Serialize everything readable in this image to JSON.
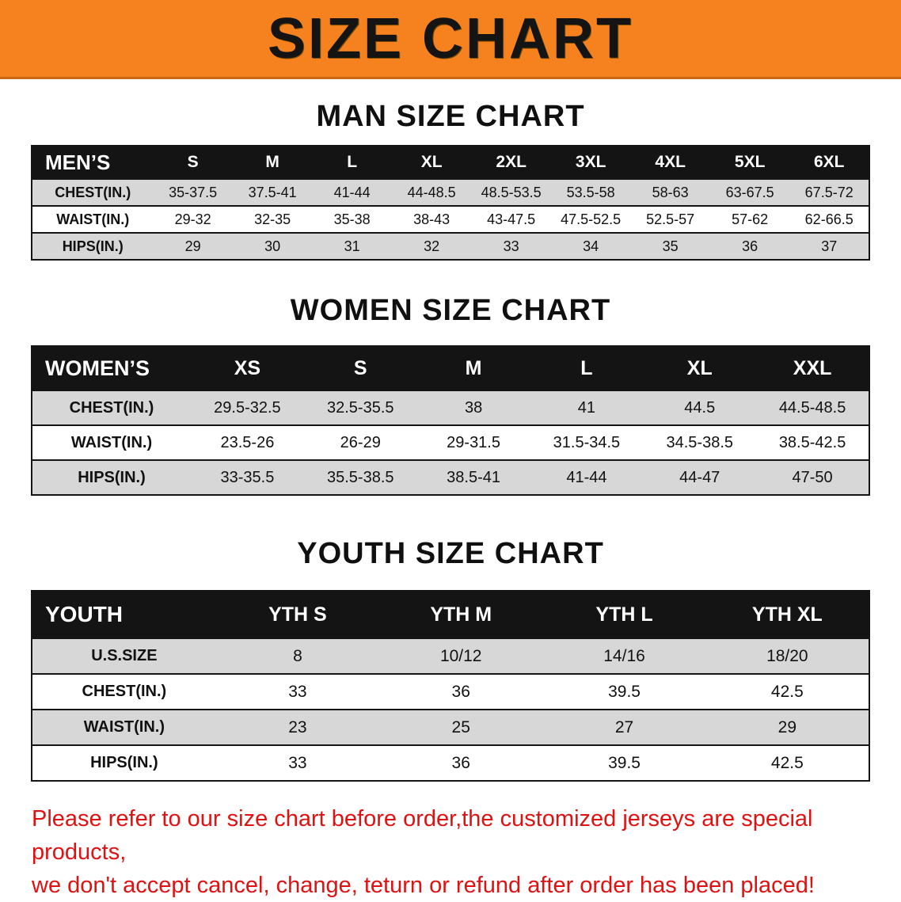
{
  "banner": {
    "title": "SIZE CHART",
    "bg_color": "#f5821f"
  },
  "sections": {
    "men": {
      "heading": "MAN SIZE CHART",
      "table": {
        "header": [
          "MEN’S",
          "S",
          "M",
          "L",
          "XL",
          "2XL",
          "3XL",
          "4XL",
          "5XL",
          "6XL"
        ],
        "rows": [
          [
            "CHEST(IN.)",
            "35-37.5",
            "37.5-41",
            "41-44",
            "44-48.5",
            "48.5-53.5",
            "53.5-58",
            "58-63",
            "63-67.5",
            "67.5-72"
          ],
          [
            "WAIST(IN.)",
            "29-32",
            "32-35",
            "35-38",
            "38-43",
            "43-47.5",
            "47.5-52.5",
            "52.5-57",
            "57-62",
            "62-66.5"
          ],
          [
            "HIPS(IN.)",
            "29",
            "30",
            "31",
            "32",
            "33",
            "34",
            "35",
            "36",
            "37"
          ]
        ]
      }
    },
    "women": {
      "heading": "WOMEN SIZE CHART",
      "table": {
        "header": [
          "WOMEN’S",
          "XS",
          "S",
          "M",
          "L",
          "XL",
          "XXL"
        ],
        "rows": [
          [
            "CHEST(IN.)",
            "29.5-32.5",
            "32.5-35.5",
            "38",
            "41",
            "44.5",
            "44.5-48.5"
          ],
          [
            "WAIST(IN.)",
            "23.5-26",
            "26-29",
            "29-31.5",
            "31.5-34.5",
            "34.5-38.5",
            "38.5-42.5"
          ],
          [
            "HIPS(IN.)",
            "33-35.5",
            "35.5-38.5",
            "38.5-41",
            "41-44",
            "44-47",
            "47-50"
          ]
        ]
      }
    },
    "youth": {
      "heading": "YOUTH SIZE CHART",
      "table": {
        "header": [
          "YOUTH",
          "YTH S",
          "YTH M",
          "YTH L",
          "YTH XL"
        ],
        "rows": [
          [
            "U.S.SIZE",
            "8",
            "10/12",
            "14/16",
            "18/20"
          ],
          [
            "CHEST(IN.)",
            "33",
            "36",
            "39.5",
            "42.5"
          ],
          [
            "WAIST(IN.)",
            "23",
            "25",
            "27",
            "29"
          ],
          [
            "HIPS(IN.)",
            "33",
            "36",
            "39.5",
            "42.5"
          ]
        ]
      }
    }
  },
  "disclaimer": {
    "line1": "Please refer to our size chart before order,the customized jerseys are special products,",
    "line2": "we don't accept cancel, change, teturn or refund after order has been placed!"
  }
}
